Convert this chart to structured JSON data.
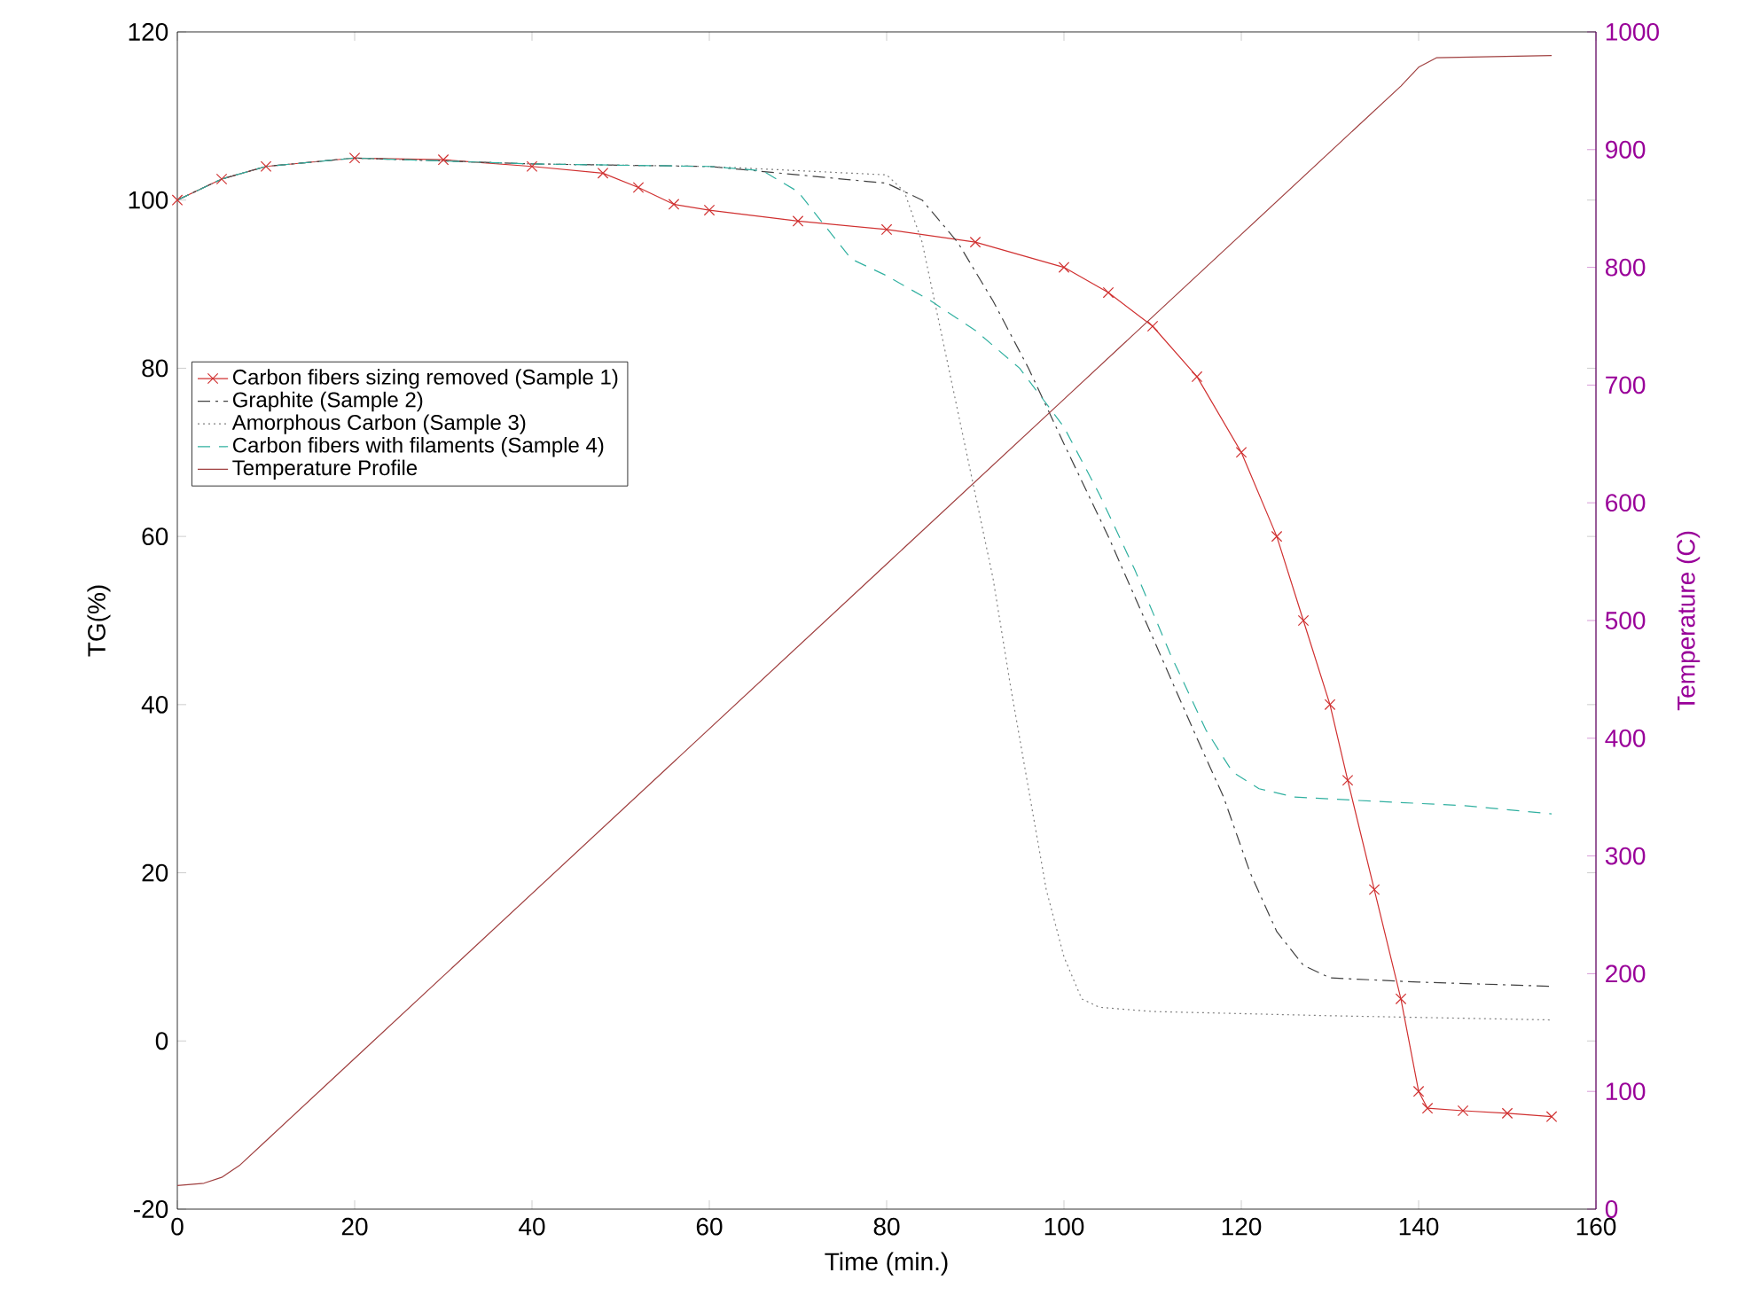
{
  "chart_data": {
    "type": "line",
    "xlabel": "Time (min.)",
    "ylabel": "TG(%)",
    "y2label": "Temperature (C)",
    "xlim": [
      0,
      160
    ],
    "xticks": [
      0,
      20,
      40,
      60,
      80,
      100,
      120,
      140,
      160
    ],
    "ylim": [
      -20,
      120
    ],
    "yticks": [
      -20,
      0,
      20,
      40,
      60,
      80,
      100,
      120
    ],
    "y2lim": [
      0,
      1000
    ],
    "y2ticks": [
      0,
      100,
      200,
      300,
      400,
      500,
      600,
      700,
      800,
      900,
      1000
    ],
    "legend": "left",
    "grid": false,
    "series": [
      {
        "name": "Carbon fibers sizing removed (Sample 1)",
        "color": "#d03030",
        "marker": "cross",
        "line_style": "solid",
        "x": [
          0,
          5,
          10,
          20,
          30,
          40,
          48,
          52,
          56,
          60,
          70,
          80,
          90,
          100,
          105,
          110,
          115,
          120,
          124,
          127,
          130,
          132,
          135,
          138,
          140,
          141,
          145,
          150,
          155
        ],
        "values": [
          100,
          102.5,
          104,
          105,
          104.8,
          104,
          103.2,
          101.5,
          99.5,
          98.8,
          97.5,
          96.5,
          95,
          92,
          89,
          85,
          79,
          70,
          60,
          50,
          40,
          31,
          18,
          5,
          -6,
          -8,
          -8.3,
          -8.6,
          -9
        ]
      },
      {
        "name": "Graphite (Sample 2)",
        "color": "#404040",
        "marker": "none",
        "line_style": "dashdot",
        "x": [
          0,
          5,
          10,
          20,
          40,
          60,
          80,
          84,
          88,
          92,
          96,
          100,
          105,
          110,
          115,
          118,
          121,
          124,
          127,
          130,
          140,
          155
        ],
        "values": [
          100,
          102.5,
          104,
          105,
          104.3,
          104,
          102,
          100,
          95,
          88,
          80,
          71,
          60,
          48,
          36,
          29,
          20,
          13,
          9,
          7.5,
          7,
          6.5
        ]
      },
      {
        "name": "Amorphous Carbon (Sample 3)",
        "color": "#808080",
        "marker": "none",
        "line_style": "dotted",
        "x": [
          0,
          5,
          10,
          20,
          40,
          60,
          80,
          82,
          84,
          86,
          88,
          90,
          92,
          94,
          96,
          98,
          100,
          102,
          104,
          110,
          130,
          155
        ],
        "values": [
          100,
          102.5,
          104,
          105,
          104.3,
          104,
          103,
          101,
          95,
          85,
          75,
          65,
          55,
          42,
          30,
          18,
          10,
          5,
          4,
          3.5,
          3,
          2.5
        ]
      },
      {
        "name": "Carbon fibers with filaments (Sample 4)",
        "color": "#30b0a0",
        "marker": "none",
        "line_style": "dashed",
        "x": [
          0,
          5,
          10,
          20,
          40,
          60,
          66,
          70,
          73,
          76,
          80,
          85,
          90,
          95,
          100,
          104,
          108,
          112,
          116,
          119,
          122,
          126,
          135,
          145,
          155
        ],
        "values": [
          100,
          102.5,
          104,
          105,
          104.3,
          104,
          103.5,
          101,
          97,
          93,
          91,
          88,
          84.5,
          80,
          73,
          65,
          56,
          46,
          37,
          32,
          30,
          29,
          28.5,
          28,
          27
        ]
      },
      {
        "name": "Temperature Profile",
        "color": "#a04040",
        "marker": "none",
        "line_style": "solid",
        "axis": "y2",
        "x": [
          0,
          3,
          5,
          7,
          10,
          20,
          40,
          60,
          80,
          100,
          120,
          138,
          140,
          142,
          155
        ],
        "values": [
          20,
          22,
          27,
          37,
          58,
          128,
          268,
          408,
          548,
          688,
          828,
          954,
          970,
          978,
          980
        ]
      }
    ]
  }
}
